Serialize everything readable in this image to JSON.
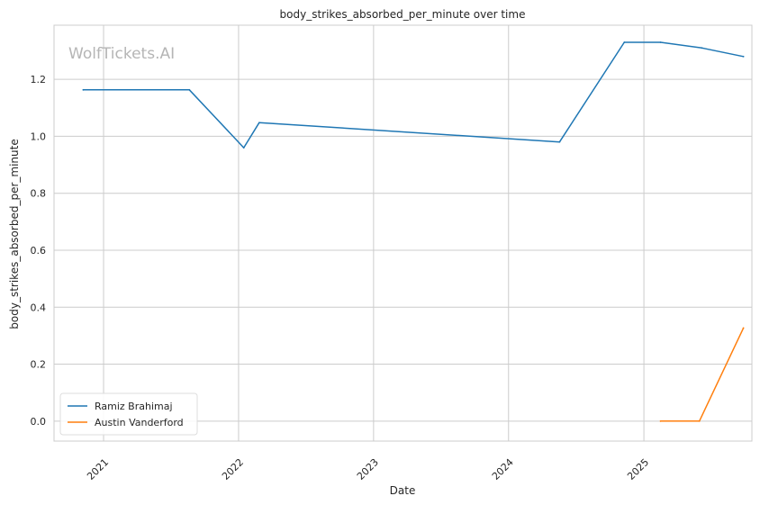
{
  "watermark": "WolfTickets.AI",
  "chart_data": {
    "type": "line",
    "title": "body_strikes_absorbed_per_minute over time",
    "xlabel": "Date",
    "ylabel": "body_strikes_absorbed_per_minute",
    "x_ticks": [
      "2021",
      "2022",
      "2023",
      "2024",
      "2025"
    ],
    "y_ticks": [
      "0.0",
      "0.2",
      "0.4",
      "0.6",
      "0.8",
      "1.0",
      "1.2"
    ],
    "xlim": [
      "2020-08-20",
      "2025-10-20"
    ],
    "ylim": [
      -0.07,
      1.39
    ],
    "grid": true,
    "legend_position": "lower-left",
    "series": [
      {
        "name": "Ramiz Brahimaj",
        "color": "#1f77b4",
        "points": [
          {
            "x": "2020-11-07",
            "y": 1.163
          },
          {
            "x": "2021-08-21",
            "y": 1.163
          },
          {
            "x": "2022-01-15",
            "y": 0.96
          },
          {
            "x": "2022-02-26",
            "y": 1.048
          },
          {
            "x": "2024-05-18",
            "y": 0.98
          },
          {
            "x": "2024-11-09",
            "y": 1.33
          },
          {
            "x": "2025-02-15",
            "y": 1.33
          },
          {
            "x": "2025-06-07",
            "y": 1.31
          },
          {
            "x": "2025-09-27",
            "y": 1.28
          }
        ]
      },
      {
        "name": "Austin Vanderford",
        "color": "#ff7f0e",
        "points": [
          {
            "x": "2025-02-15",
            "y": 0.0
          },
          {
            "x": "2025-05-31",
            "y": 0.0
          },
          {
            "x": "2025-09-27",
            "y": 0.327
          }
        ]
      }
    ]
  }
}
